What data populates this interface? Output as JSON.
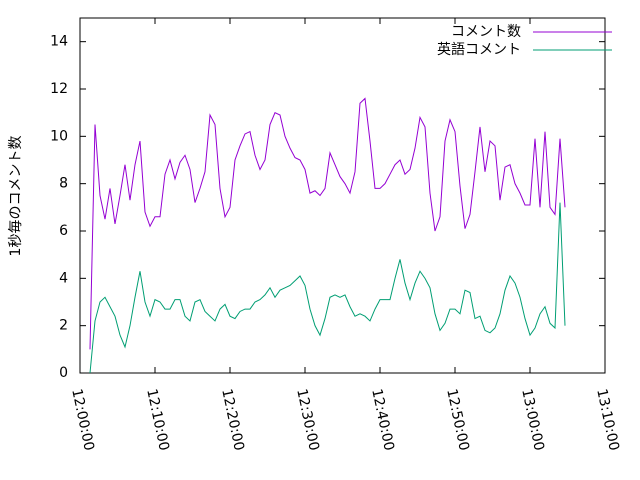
{
  "chart_data": {
    "type": "line",
    "y_label": "1秒毎のコメント数",
    "x": [
      "12:01:20",
      "12:02:00",
      "12:02:40",
      "12:03:20",
      "12:04:00",
      "12:04:40",
      "12:05:20",
      "12:06:00",
      "12:06:40",
      "12:07:20",
      "12:08:00",
      "12:08:40",
      "12:09:20",
      "12:10:00",
      "12:10:40",
      "12:11:20",
      "12:12:00",
      "12:12:40",
      "12:13:20",
      "12:14:00",
      "12:14:40",
      "12:15:20",
      "12:16:00",
      "12:16:40",
      "12:17:20",
      "12:18:00",
      "12:18:40",
      "12:19:20",
      "12:20:00",
      "12:20:40",
      "12:21:20",
      "12:22:00",
      "12:22:40",
      "12:23:20",
      "12:24:00",
      "12:24:40",
      "12:25:20",
      "12:26:00",
      "12:26:40",
      "12:27:20",
      "12:28:00",
      "12:28:40",
      "12:29:20",
      "12:30:00",
      "12:30:40",
      "12:31:20",
      "12:32:00",
      "12:32:40",
      "12:33:20",
      "12:34:00",
      "12:34:40",
      "12:35:20",
      "12:36:00",
      "12:36:40",
      "12:37:20",
      "12:38:00",
      "12:38:40",
      "12:39:20",
      "12:40:00",
      "12:40:40",
      "12:41:20",
      "12:42:00",
      "12:42:40",
      "12:43:20",
      "12:44:00",
      "12:44:40",
      "12:45:20",
      "12:46:00",
      "12:46:40",
      "12:47:20",
      "12:48:00",
      "12:48:40",
      "12:49:20",
      "12:50:00",
      "12:50:40",
      "12:51:20",
      "12:52:00",
      "12:52:40",
      "12:53:20",
      "12:54:00",
      "12:54:40",
      "12:55:20",
      "12:56:00",
      "12:56:40",
      "12:57:20",
      "12:58:00",
      "12:58:40",
      "12:59:20",
      "13:00:00",
      "13:00:40",
      "13:01:20",
      "13:02:00",
      "13:02:40",
      "13:03:20",
      "13:04:00",
      "13:04:40"
    ],
    "series": [
      {
        "name": "コメント数",
        "color": "#9400d3",
        "values": [
          1.0,
          10.5,
          7.5,
          6.5,
          7.8,
          6.3,
          7.5,
          8.8,
          7.3,
          8.8,
          9.8,
          6.8,
          6.2,
          6.6,
          6.6,
          8.4,
          9.0,
          8.2,
          8.9,
          9.2,
          8.6,
          7.2,
          7.8,
          8.5,
          10.9,
          10.5,
          7.8,
          6.6,
          7.0,
          9.0,
          9.6,
          10.1,
          10.2,
          9.2,
          8.6,
          9.0,
          10.5,
          11.0,
          10.9,
          10.0,
          9.5,
          9.1,
          9.0,
          8.6,
          7.6,
          7.7,
          7.5,
          7.8,
          9.3,
          8.8,
          8.3,
          8.0,
          7.6,
          8.5,
          11.4,
          11.6,
          9.8,
          7.8,
          7.8,
          8.0,
          8.4,
          8.8,
          9.0,
          8.4,
          8.6,
          9.5,
          10.8,
          10.4,
          7.6,
          6.0,
          6.6,
          9.8,
          10.7,
          10.2,
          7.9,
          6.1,
          6.7,
          8.5,
          10.4,
          8.5,
          9.8,
          9.6,
          7.3,
          8.7,
          8.8,
          8.0,
          7.6,
          7.1,
          7.1,
          9.9,
          7.0,
          10.2,
          7.0,
          6.7,
          9.9,
          7.0
        ]
      },
      {
        "name": "英語コメント",
        "color": "#009e73",
        "values": [
          0,
          2.2,
          3.0,
          3.2,
          2.8,
          2.4,
          1.6,
          1.1,
          2.0,
          3.2,
          4.3,
          3.0,
          2.4,
          3.1,
          3.0,
          2.7,
          2.7,
          3.1,
          3.1,
          2.4,
          2.2,
          3.0,
          3.1,
          2.6,
          2.4,
          2.2,
          2.7,
          2.9,
          2.4,
          2.3,
          2.6,
          2.7,
          2.7,
          3.0,
          3.1,
          3.3,
          3.6,
          3.2,
          3.5,
          3.6,
          3.7,
          3.9,
          4.1,
          3.7,
          2.7,
          2.0,
          1.6,
          2.3,
          3.2,
          3.3,
          3.2,
          3.3,
          2.8,
          2.4,
          2.5,
          2.4,
          2.2,
          2.7,
          3.1,
          3.1,
          3.1,
          4.0,
          4.8,
          3.8,
          3.1,
          3.8,
          4.3,
          4.0,
          3.6,
          2.5,
          1.8,
          2.1,
          2.7,
          2.7,
          2.5,
          3.5,
          3.4,
          2.3,
          2.4,
          1.8,
          1.7,
          1.9,
          2.5,
          3.5,
          4.1,
          3.8,
          3.2,
          2.3,
          1.6,
          1.9,
          2.5,
          2.8,
          2.1,
          1.9,
          7.2,
          2.0
        ]
      }
    ],
    "xlim": [
      "12:00:00",
      "13:10:00"
    ],
    "xticks": [
      "12:00:00",
      "12:10:00",
      "12:20:00",
      "12:30:00",
      "12:40:00",
      "12:50:00",
      "13:00:00",
      "13:10:00"
    ],
    "ylim": [
      0,
      15
    ],
    "yticks": [
      0,
      2,
      4,
      6,
      8,
      10,
      12,
      14
    ],
    "grid": false,
    "legend": "upper right"
  }
}
